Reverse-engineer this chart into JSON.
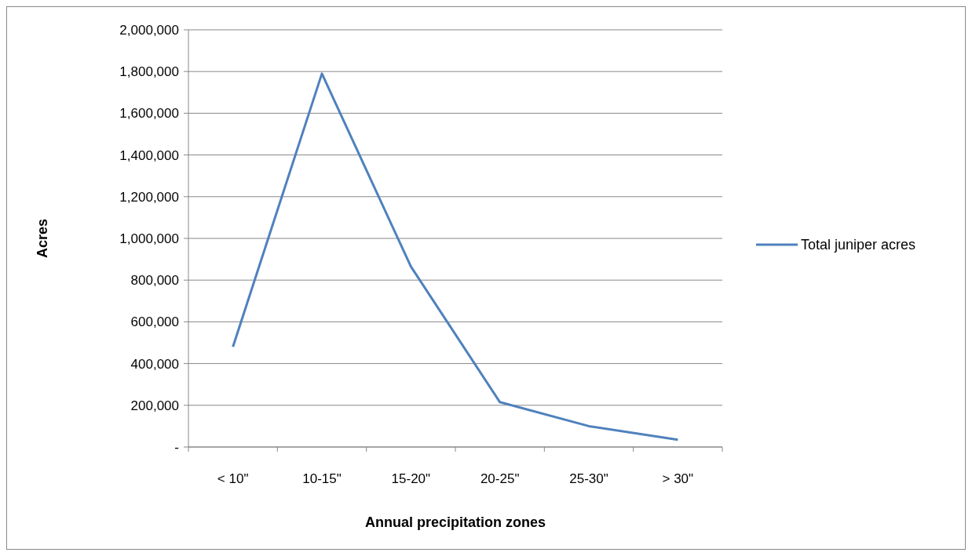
{
  "chart_data": {
    "type": "line",
    "xlabel": "Annual precipitation zones",
    "ylabel": "Acres",
    "categories": [
      "< 10\"",
      "10-15\"",
      "15-20\"",
      "20-25\"",
      "25-30\"",
      "> 30\""
    ],
    "series": [
      {
        "name": "Total juniper acres",
        "color": "#4f81bd",
        "values": [
          480000,
          1790000,
          865000,
          215000,
          100000,
          35000
        ]
      }
    ],
    "ylim": [
      0,
      2000000
    ],
    "yticks": [
      {
        "value": 0,
        "label": "-"
      },
      {
        "value": 200000,
        "label": "200,000"
      },
      {
        "value": 400000,
        "label": "400,000"
      },
      {
        "value": 600000,
        "label": "600,000"
      },
      {
        "value": 800000,
        "label": "800,000"
      },
      {
        "value": 1000000,
        "label": "1,000,000"
      },
      {
        "value": 1200000,
        "label": "1,200,000"
      },
      {
        "value": 1400000,
        "label": "1,400,000"
      },
      {
        "value": 1600000,
        "label": "1,600,000"
      },
      {
        "value": 1800000,
        "label": "1,800,000"
      },
      {
        "value": 2000000,
        "label": "2,000,000"
      }
    ],
    "grid": "y",
    "legend": "right",
    "marker": "none",
    "line_style": "solid"
  }
}
